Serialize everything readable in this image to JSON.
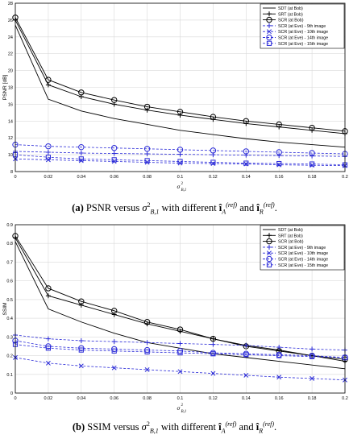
{
  "colors": {
    "bob": "#000000",
    "eve": "#2a2ad8",
    "grid": "#d9d9d9",
    "axis": "#000000"
  },
  "chart_data": [
    {
      "id": "a",
      "type": "line",
      "xlabel_sym": "σ",
      "xlabel_sup": "2",
      "xlabel_sub": "B,1",
      "ylabel": "PSNR [dB]",
      "xlim": [
        0,
        0.2
      ],
      "ylim": [
        8,
        28
      ],
      "xticks": [
        0,
        0.02,
        0.04,
        0.06,
        0.08,
        0.1,
        0.12,
        0.14,
        0.16,
        0.18,
        0.2
      ],
      "yticks": [
        8,
        10,
        12,
        14,
        16,
        18,
        20,
        22,
        24,
        26,
        28
      ],
      "xticklabels": [
        "0",
        "0.02",
        "0.04",
        "0.06",
        "0.08",
        "0.1",
        "0.12",
        "0.14",
        "0.16",
        "0.18",
        "0.2"
      ],
      "yticklabels": [
        "8",
        "10",
        "12",
        "14",
        "16",
        "18",
        "20",
        "22",
        "24",
        "26",
        "28"
      ],
      "legend_position": "top-right",
      "x": [
        0,
        0.02,
        0.04,
        0.06,
        0.08,
        0.1,
        0.12,
        0.14,
        0.16,
        0.18,
        0.2
      ],
      "series": [
        {
          "name": "SDT (at Bob)",
          "style": "solid",
          "marker": "none",
          "color": "bob",
          "values": [
            25.4,
            16.6,
            15.2,
            14.3,
            13.6,
            12.9,
            12.4,
            11.9,
            11.5,
            11.2,
            10.9
          ]
        },
        {
          "name": "SRT (at Bob)",
          "style": "solid",
          "marker": "plus",
          "color": "bob",
          "values": [
            26.0,
            18.3,
            16.9,
            16.0,
            15.3,
            14.7,
            14.2,
            13.7,
            13.3,
            12.9,
            12.5
          ]
        },
        {
          "name": "SCR (at Bob)",
          "style": "solid",
          "marker": "circle",
          "color": "bob",
          "values": [
            26.3,
            18.9,
            17.4,
            16.5,
            15.7,
            15.1,
            14.5,
            14.0,
            13.6,
            13.2,
            12.8
          ]
        },
        {
          "name": "SCR (at Eve) - 9th image",
          "style": "dashed",
          "marker": "plus",
          "color": "eve",
          "values": [
            10.4,
            10.3,
            10.2,
            10.15,
            10.1,
            10.05,
            10.0,
            9.95,
            9.9,
            9.85,
            9.8
          ]
        },
        {
          "name": "SCR (at Eve) - 10th image",
          "style": "dashed",
          "marker": "x",
          "color": "eve",
          "values": [
            9.5,
            9.4,
            9.3,
            9.2,
            9.1,
            9.0,
            8.95,
            8.9,
            8.8,
            8.75,
            8.7
          ]
        },
        {
          "name": "SCR (at Eve) - 14th image",
          "style": "dashed",
          "marker": "circle",
          "color": "eve",
          "values": [
            11.2,
            11.0,
            10.9,
            10.8,
            10.7,
            10.6,
            10.5,
            10.4,
            10.3,
            10.2,
            10.1
          ]
        },
        {
          "name": "SCR (at Eve) - 15th image",
          "style": "dashed",
          "marker": "square",
          "color": "eve",
          "values": [
            10.0,
            9.7,
            9.5,
            9.4,
            9.3,
            9.2,
            9.1,
            9.0,
            8.95,
            8.9,
            8.8
          ]
        }
      ]
    },
    {
      "id": "b",
      "type": "line",
      "xlabel_sym": "σ",
      "xlabel_sup": "2",
      "xlabel_sub": "B,1",
      "ylabel": "SSIM",
      "xlim": [
        0,
        0.2
      ],
      "ylim": [
        0,
        0.9
      ],
      "xticks": [
        0,
        0.02,
        0.04,
        0.06,
        0.08,
        0.1,
        0.12,
        0.14,
        0.16,
        0.18,
        0.2
      ],
      "yticks": [
        0,
        0.1,
        0.2,
        0.3,
        0.4,
        0.5,
        0.6,
        0.7,
        0.8,
        0.9
      ],
      "xticklabels": [
        "0",
        "0.02",
        "0.04",
        "0.06",
        "0.08",
        "0.1",
        "0.12",
        "0.14",
        "0.16",
        "0.18",
        "0.2"
      ],
      "yticklabels": [
        "0",
        "0.1",
        "0.2",
        "0.3",
        "0.4",
        "0.5",
        "0.6",
        "0.7",
        "0.8",
        "0.9"
      ],
      "legend_position": "top-right",
      "x": [
        0,
        0.02,
        0.04,
        0.06,
        0.08,
        0.1,
        0.12,
        0.14,
        0.16,
        0.18,
        0.2
      ],
      "series": [
        {
          "name": "SDT (at Bob)",
          "style": "solid",
          "marker": "none",
          "color": "bob",
          "values": [
            0.81,
            0.45,
            0.38,
            0.32,
            0.27,
            0.24,
            0.21,
            0.19,
            0.17,
            0.15,
            0.13
          ]
        },
        {
          "name": "SRT (at Bob)",
          "style": "solid",
          "marker": "plus",
          "color": "bob",
          "values": [
            0.83,
            0.52,
            0.47,
            0.42,
            0.37,
            0.33,
            0.29,
            0.255,
            0.23,
            0.2,
            0.17
          ]
        },
        {
          "name": "SCR (at Bob)",
          "style": "solid",
          "marker": "circle",
          "color": "bob",
          "values": [
            0.84,
            0.56,
            0.49,
            0.44,
            0.38,
            0.34,
            0.29,
            0.25,
            0.225,
            0.2,
            0.18
          ]
        },
        {
          "name": "SCR (at Eve) - 9th image",
          "style": "dashed",
          "marker": "plus",
          "color": "eve",
          "values": [
            0.31,
            0.29,
            0.28,
            0.275,
            0.27,
            0.265,
            0.26,
            0.255,
            0.245,
            0.235,
            0.23
          ]
        },
        {
          "name": "SCR (at Eve) - 10th image",
          "style": "dashed",
          "marker": "x",
          "color": "eve",
          "values": [
            0.19,
            0.16,
            0.145,
            0.135,
            0.125,
            0.115,
            0.105,
            0.095,
            0.085,
            0.078,
            0.07
          ]
        },
        {
          "name": "SCR (at Eve) - 14th image",
          "style": "dashed",
          "marker": "circle",
          "color": "eve",
          "values": [
            0.28,
            0.25,
            0.24,
            0.235,
            0.23,
            0.225,
            0.215,
            0.21,
            0.205,
            0.2,
            0.19
          ]
        },
        {
          "name": "SCR (at Eve) - 15th image",
          "style": "dashed",
          "marker": "square",
          "color": "eve",
          "values": [
            0.26,
            0.24,
            0.23,
            0.225,
            0.22,
            0.215,
            0.21,
            0.205,
            0.2,
            0.195,
            0.19
          ]
        }
      ]
    }
  ],
  "captions": {
    "a": {
      "label": "(a)",
      "pre": "PSNR versus",
      "sym": "σ",
      "sym_sup": "2",
      "sym_sub": "B,1",
      "mid1": "with different",
      "i1": "î",
      "i1_sup": "(ref)",
      "i1_sub": "A",
      "mid2": "and",
      "i2": "î",
      "i2_sup": "(ref)",
      "i2_sub": "R",
      "end": "."
    },
    "b": {
      "label": "(b)",
      "pre": "SSIM versus",
      "sym": "σ",
      "sym_sup": "2",
      "sym_sub": "B,1",
      "mid1": "with different",
      "i1": "î",
      "i1_sup": "(ref)",
      "i1_sub": "A",
      "mid2": "and",
      "i2": "î",
      "i2_sup": "(ref)",
      "i2_sub": "R",
      "end": "."
    }
  }
}
